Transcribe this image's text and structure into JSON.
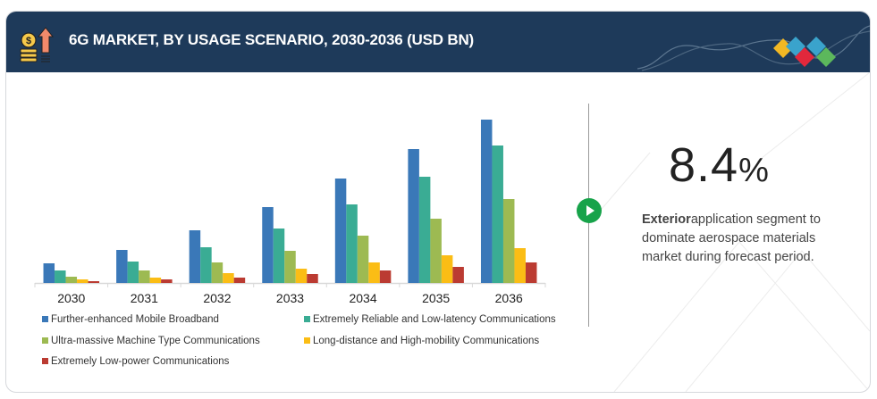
{
  "header": {
    "title": "6G MARKET, BY USAGE SCENARIO, 2030-2036 (USD BN)",
    "icon": "coins-growth-icon"
  },
  "highlight": {
    "value": "8.4",
    "unit": "%",
    "bold_text": "Exterior",
    "text": "application segment to dominate aerospace materials market during forecast period."
  },
  "chart_data": {
    "type": "bar",
    "title": "6G MARKET, BY USAGE SCENARIO, 2030-2036 (USD BN)",
    "xlabel": "",
    "ylabel": "",
    "grid": false,
    "legend_position": "bottom",
    "categories": [
      "2030",
      "2031",
      "2032",
      "2033",
      "2034",
      "2035",
      "2036"
    ],
    "ylim": [
      0,
      190
    ],
    "series": [
      {
        "name": "Further-enhanced Mobile Broadband",
        "color": "#3a78b8",
        "values": [
          22,
          37,
          59,
          85,
          117,
          150,
          183
        ]
      },
      {
        "name": "Extremely Reliable and Low-latency Communications",
        "color": "#3aac94",
        "values": [
          14,
          24,
          40,
          61,
          88,
          119,
          154
        ]
      },
      {
        "name": "Ultra-massive Machine Type Communications",
        "color": "#9dba52",
        "values": [
          7,
          14,
          23,
          36,
          53,
          72,
          94
        ]
      },
      {
        "name": "Long-distance and High-mobility Communications",
        "color": "#fbbd15",
        "values": [
          4,
          6,
          11,
          16,
          23,
          31,
          39
        ]
      },
      {
        "name": "Extremely Low-power Communications",
        "color": "#bb3b32",
        "values": [
          2,
          4,
          6,
          10,
          14,
          18,
          23
        ]
      }
    ]
  }
}
